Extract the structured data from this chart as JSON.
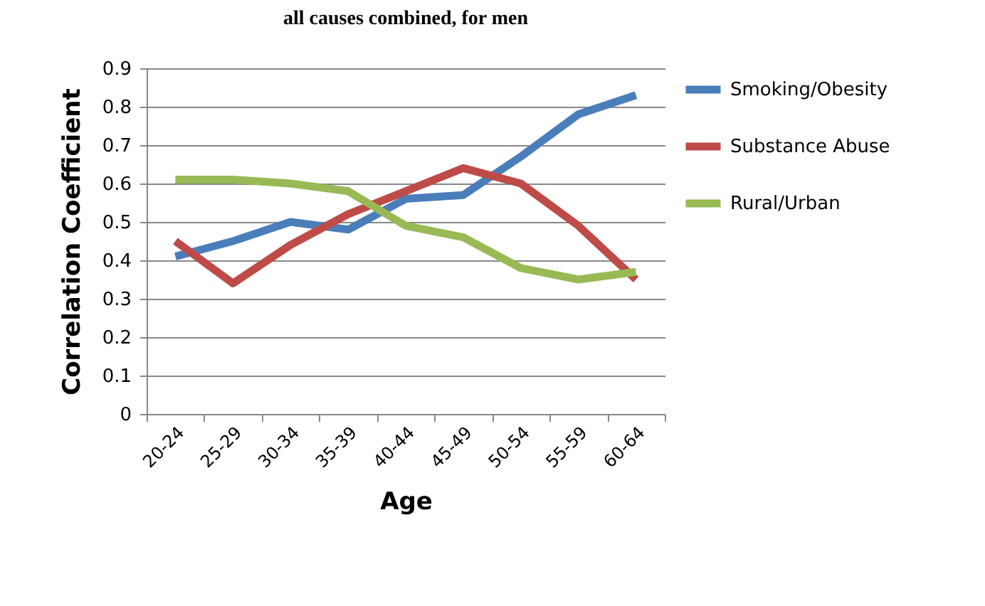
{
  "chart_data": {
    "type": "line",
    "title": "all causes combined, for men",
    "xlabel": "Age",
    "ylabel": "Correlation Coefficient",
    "categories": [
      "20-24",
      "25-29",
      "30-34",
      "35-39",
      "40-44",
      "45-49",
      "50-54",
      "55-59",
      "60-64"
    ],
    "series": [
      {
        "name": "Smoking/Obesity",
        "color": "#4a7ebb",
        "values": [
          0.41,
          0.45,
          0.5,
          0.48,
          0.56,
          0.57,
          0.67,
          0.78,
          0.83
        ]
      },
      {
        "name": "Substance Abuse",
        "color": "#be4b48",
        "values": [
          0.45,
          0.34,
          0.44,
          0.52,
          0.58,
          0.64,
          0.6,
          0.49,
          0.35
        ]
      },
      {
        "name": "Rural/Urban",
        "color": "#98b954",
        "values": [
          0.61,
          0.61,
          0.6,
          0.58,
          0.49,
          0.46,
          0.38,
          0.35,
          0.37
        ]
      }
    ],
    "ylim": [
      0,
      0.9
    ],
    "yticks": [
      0,
      0.1,
      0.2,
      0.3,
      0.4,
      0.5,
      0.6,
      0.7,
      0.8,
      0.9
    ],
    "grid": "y",
    "legend": "right",
    "marker": "none",
    "line_style": "solid"
  }
}
